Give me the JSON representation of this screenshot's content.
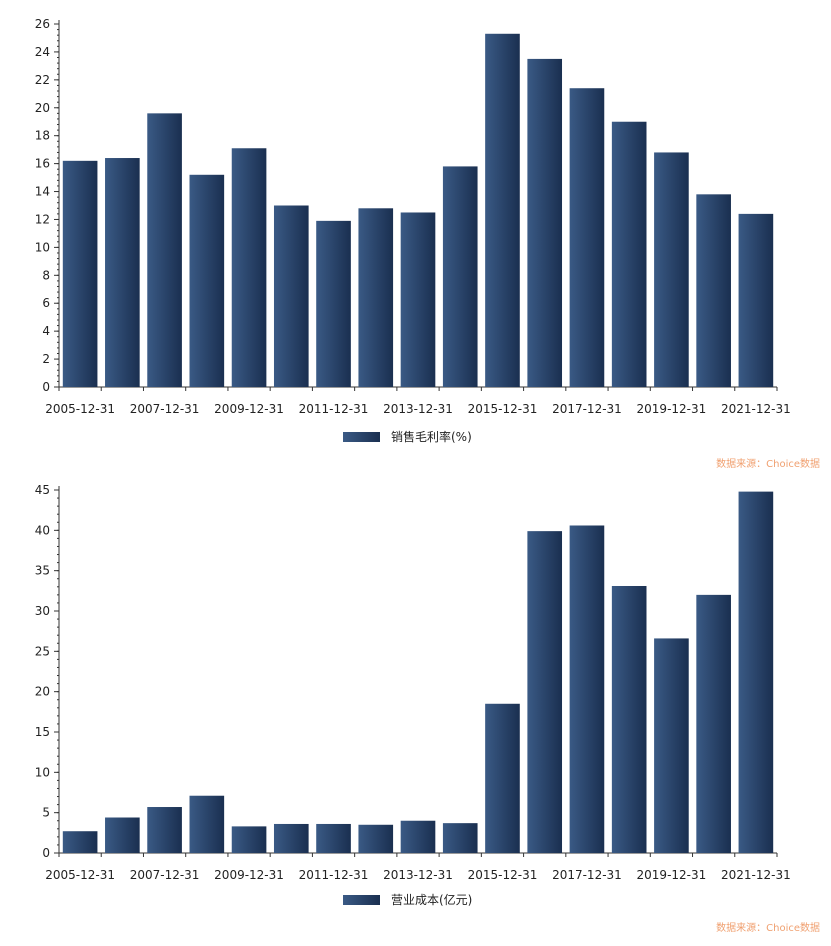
{
  "colors": {
    "bar_dark": "#1a2f50",
    "bar_light": "#3a5a85",
    "axis": "#333333",
    "source_text": "#f0a070"
  },
  "chart_data": [
    {
      "type": "bar",
      "categories": [
        "2005-12-31",
        "2006-12-31",
        "2007-12-31",
        "2008-12-31",
        "2009-12-31",
        "2010-12-31",
        "2011-12-31",
        "2012-12-31",
        "2013-12-31",
        "2014-12-31",
        "2015-12-31",
        "2016-12-31",
        "2017-12-31",
        "2018-12-31",
        "2019-12-31",
        "2020-12-31",
        "2021-12-31"
      ],
      "x_tick_labels": [
        "2005-12-31",
        "2007-12-31",
        "2009-12-31",
        "2011-12-31",
        "2013-12-31",
        "2015-12-31",
        "2017-12-31",
        "2019-12-31",
        "2021-12-31"
      ],
      "series": [
        {
          "name": "销售毛利率(%)",
          "values": [
            16.2,
            16.4,
            19.6,
            15.2,
            17.1,
            13.0,
            11.9,
            12.8,
            12.5,
            15.8,
            25.3,
            23.5,
            21.4,
            19.0,
            16.8,
            13.8,
            12.4
          ]
        }
      ],
      "ylim": [
        0,
        26
      ],
      "yticks": [
        0,
        2,
        4,
        6,
        8,
        10,
        12,
        14,
        16,
        18,
        20,
        22,
        24,
        26
      ],
      "legend_position": "bottom-center",
      "source": "数据来源：Choice数据",
      "grid": false
    },
    {
      "type": "bar",
      "categories": [
        "2005-12-31",
        "2006-12-31",
        "2007-12-31",
        "2008-12-31",
        "2009-12-31",
        "2010-12-31",
        "2011-12-31",
        "2012-12-31",
        "2013-12-31",
        "2014-12-31",
        "2015-12-31",
        "2016-12-31",
        "2017-12-31",
        "2018-12-31",
        "2019-12-31",
        "2020-12-31",
        "2021-12-31"
      ],
      "x_tick_labels": [
        "2005-12-31",
        "2007-12-31",
        "2009-12-31",
        "2011-12-31",
        "2013-12-31",
        "2015-12-31",
        "2017-12-31",
        "2019-12-31",
        "2021-12-31"
      ],
      "series": [
        {
          "name": "营业成本(亿元)",
          "values": [
            2.7,
            4.4,
            5.7,
            7.1,
            3.3,
            3.6,
            3.6,
            3.5,
            4.0,
            3.7,
            18.5,
            39.9,
            40.6,
            33.1,
            26.6,
            32.0,
            44.8
          ]
        }
      ],
      "ylim": [
        0,
        45
      ],
      "yticks": [
        0,
        5,
        10,
        15,
        20,
        25,
        30,
        35,
        40,
        45
      ],
      "legend_position": "bottom-center",
      "source": "数据来源：Choice数据",
      "grid": false
    }
  ]
}
